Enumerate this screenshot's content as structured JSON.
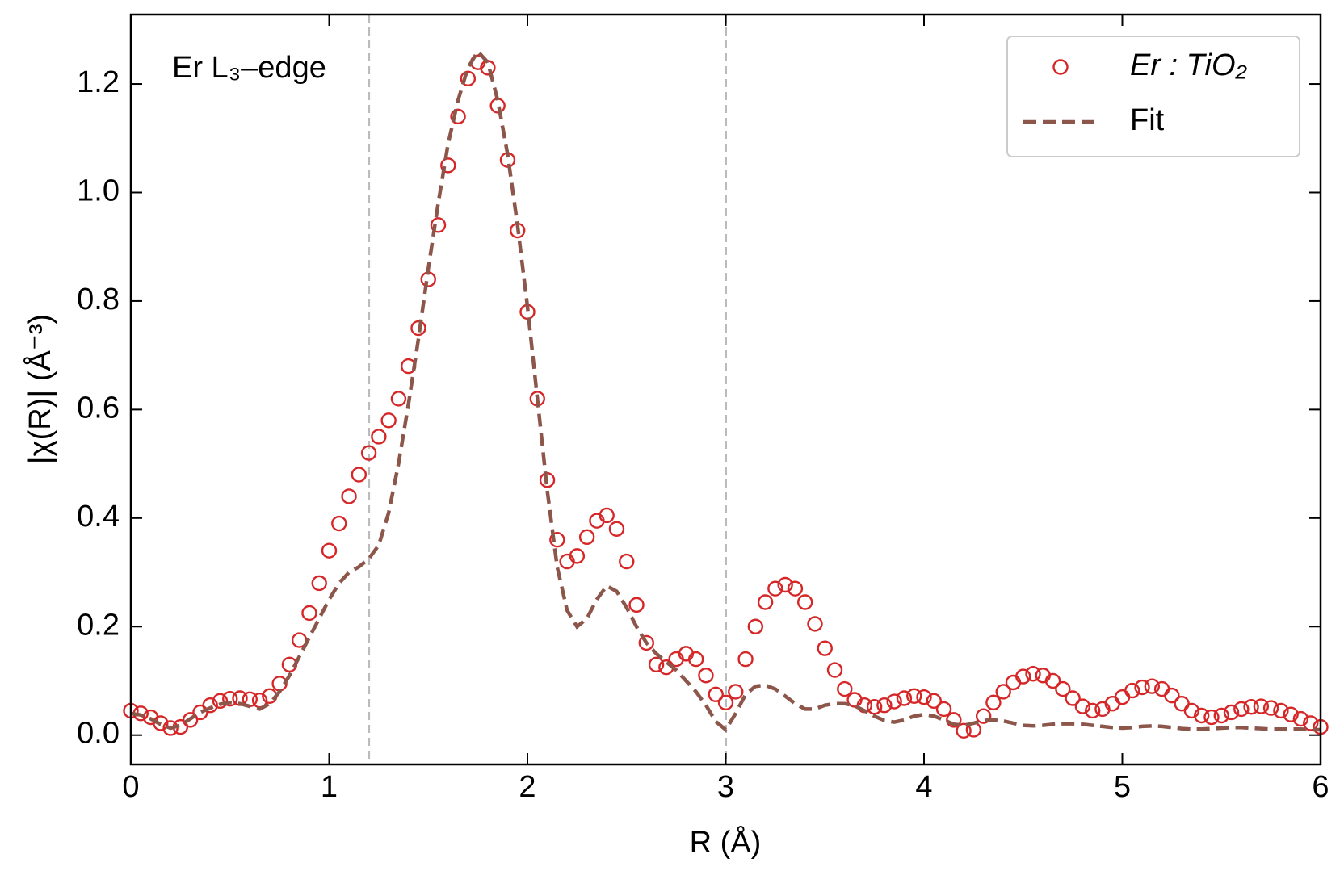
{
  "chart_data": {
    "type": "line",
    "xlabel": "R (Å)",
    "ylabel": "|χ(R)| (Å⁻³)",
    "annotation": "Er L₃–edge",
    "xlim": [
      0,
      6
    ],
    "ylim": [
      -0.054,
      1.328
    ],
    "xticks": [
      0,
      1,
      2,
      3,
      4,
      5,
      6
    ],
    "yticks": [
      {
        "value": 0,
        "label": "0.0"
      },
      0.2,
      0.4,
      0.6,
      0.8,
      {
        "value": 1,
        "label": "1.0"
      },
      1.2
    ],
    "grid": false,
    "legend": "upper right",
    "vlines": [
      1.2,
      3.0
    ],
    "vline_color": "#bbbbbb",
    "x": [
      0,
      0.05,
      0.1,
      0.15,
      0.2,
      0.25,
      0.3,
      0.35,
      0.4,
      0.45,
      0.5,
      0.55,
      0.6,
      0.65,
      0.7,
      0.75,
      0.8,
      0.85,
      0.9,
      0.95,
      1,
      1.05,
      1.1,
      1.15,
      1.2,
      1.25,
      1.3,
      1.35,
      1.4,
      1.45,
      1.5,
      1.55,
      1.6,
      1.65,
      1.7,
      1.75,
      1.8,
      1.85,
      1.9,
      1.95,
      2,
      2.05,
      2.1,
      2.15,
      2.2,
      2.25,
      2.3,
      2.35,
      2.4,
      2.45,
      2.5,
      2.55,
      2.6,
      2.65,
      2.7,
      2.75,
      2.8,
      2.85,
      2.9,
      2.95,
      3,
      3.05,
      3.1,
      3.15,
      3.2,
      3.25,
      3.3,
      3.35,
      3.4,
      3.45,
      3.5,
      3.55,
      3.6,
      3.65,
      3.7,
      3.75,
      3.8,
      3.85,
      3.9,
      3.95,
      4,
      4.05,
      4.1,
      4.15,
      4.2,
      4.25,
      4.3,
      4.35,
      4.4,
      4.45,
      4.5,
      4.55,
      4.6,
      4.65,
      4.7,
      4.75,
      4.8,
      4.85,
      4.9,
      4.95,
      5,
      5.05,
      5.1,
      5.15,
      5.2,
      5.25,
      5.3,
      5.35,
      5.4,
      5.45,
      5.5,
      5.55,
      5.6,
      5.65,
      5.7,
      5.75,
      5.8,
      5.85,
      5.9,
      5.95,
      6
    ],
    "series": [
      {
        "name": "Er : TiO₂",
        "kind": "scatter",
        "color": "#d62728",
        "values": [
          0.045,
          0.04,
          0.033,
          0.022,
          0.013,
          0.015,
          0.028,
          0.042,
          0.055,
          0.063,
          0.067,
          0.068,
          0.066,
          0.064,
          0.072,
          0.095,
          0.13,
          0.175,
          0.225,
          0.28,
          0.34,
          0.39,
          0.44,
          0.48,
          0.52,
          0.55,
          0.58,
          0.62,
          0.68,
          0.75,
          0.84,
          0.94,
          1.05,
          1.14,
          1.21,
          1.24,
          1.23,
          1.16,
          1.06,
          0.93,
          0.78,
          0.62,
          0.47,
          0.36,
          0.32,
          0.33,
          0.365,
          0.395,
          0.405,
          0.38,
          0.32,
          0.24,
          0.17,
          0.13,
          0.125,
          0.14,
          0.15,
          0.14,
          0.11,
          0.075,
          0.06,
          0.08,
          0.14,
          0.2,
          0.245,
          0.27,
          0.277,
          0.27,
          0.245,
          0.205,
          0.16,
          0.12,
          0.085,
          0.065,
          0.055,
          0.052,
          0.055,
          0.062,
          0.068,
          0.072,
          0.07,
          0.063,
          0.048,
          0.028,
          0.008,
          0.01,
          0.035,
          0.06,
          0.08,
          0.097,
          0.108,
          0.113,
          0.11,
          0.1,
          0.085,
          0.068,
          0.053,
          0.045,
          0.048,
          0.058,
          0.07,
          0.082,
          0.088,
          0.09,
          0.085,
          0.073,
          0.058,
          0.045,
          0.036,
          0.033,
          0.036,
          0.042,
          0.048,
          0.052,
          0.053,
          0.05,
          0.045,
          0.038,
          0.03,
          0.022,
          0.015
        ]
      },
      {
        "name": "Fit",
        "kind": "line",
        "color": "#8c564b",
        "values": [
          0.04,
          0.037,
          0.03,
          0.02,
          0.013,
          0.018,
          0.03,
          0.042,
          0.05,
          0.057,
          0.06,
          0.058,
          0.053,
          0.048,
          0.058,
          0.08,
          0.11,
          0.145,
          0.18,
          0.215,
          0.25,
          0.28,
          0.3,
          0.31,
          0.325,
          0.35,
          0.41,
          0.5,
          0.61,
          0.73,
          0.86,
          0.98,
          1.09,
          1.17,
          1.23,
          1.26,
          1.24,
          1.17,
          1.07,
          0.94,
          0.79,
          0.62,
          0.45,
          0.31,
          0.23,
          0.2,
          0.215,
          0.25,
          0.275,
          0.265,
          0.235,
          0.2,
          0.17,
          0.15,
          0.135,
          0.12,
          0.1,
          0.08,
          0.055,
          0.025,
          0.01,
          0.04,
          0.075,
          0.09,
          0.092,
          0.085,
          0.072,
          0.058,
          0.048,
          0.048,
          0.055,
          0.058,
          0.058,
          0.054,
          0.045,
          0.035,
          0.027,
          0.024,
          0.028,
          0.035,
          0.038,
          0.035,
          0.028,
          0.02,
          0.018,
          0.022,
          0.027,
          0.028,
          0.026,
          0.022,
          0.018,
          0.017,
          0.018,
          0.02,
          0.021,
          0.021,
          0.02,
          0.018,
          0.016,
          0.014,
          0.013,
          0.014,
          0.016,
          0.017,
          0.016,
          0.014,
          0.012,
          0.011,
          0.011,
          0.012,
          0.013,
          0.014,
          0.014,
          0.013,
          0.012,
          0.011,
          0.011,
          0.011,
          0.011,
          0.01,
          0.01
        ]
      }
    ]
  }
}
